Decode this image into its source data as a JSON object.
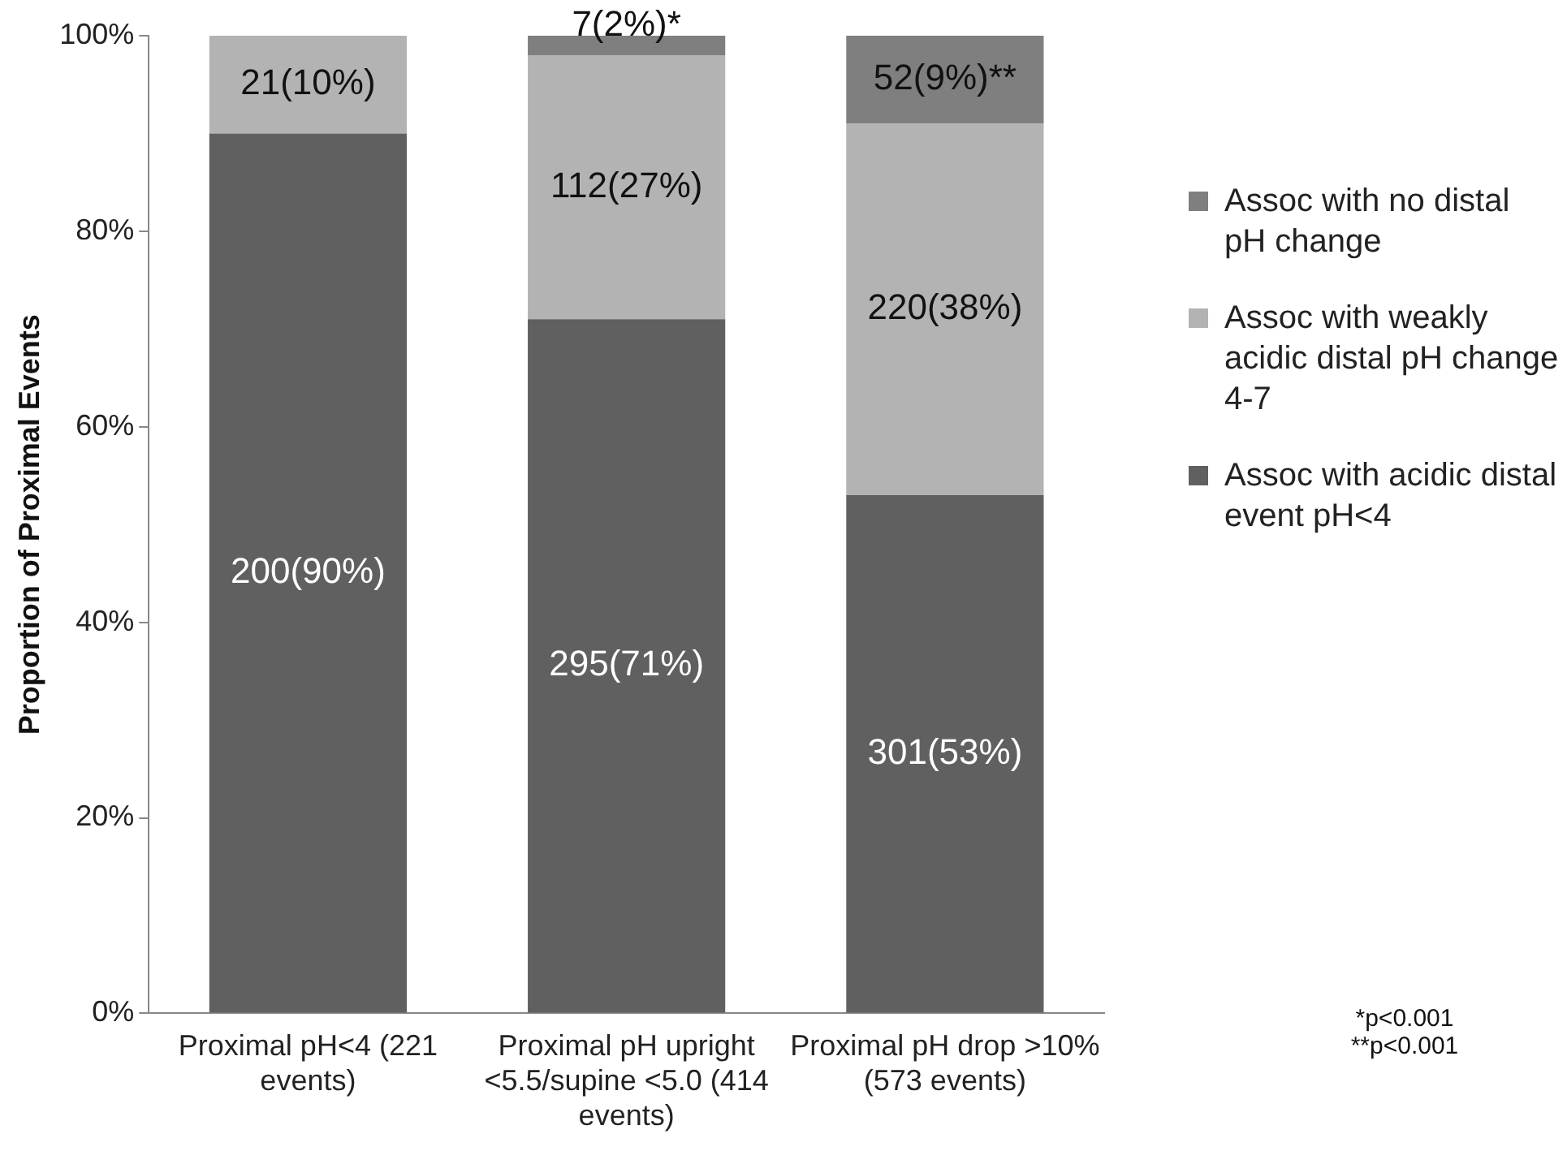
{
  "chart_data": {
    "type": "bar",
    "stacked": true,
    "ylabel": "Proportion of Proximal Events",
    "categories": [
      "Proximal pH<4 (221 events)",
      "Proximal pH upright <5.5/supine <5.0 (414 events)",
      "Proximal pH drop >10% (573 events)"
    ],
    "series": [
      {
        "name": "Assoc with acidic distal event pH<4",
        "color": "#606060",
        "values": [
          90,
          71,
          53
        ],
        "value_labels": [
          "200(90%)",
          "295(71%)",
          "301(53%)"
        ]
      },
      {
        "name": "Assoc with weakly acidic distal pH change 4-7",
        "color": "#b3b3b3",
        "values": [
          10,
          27,
          38
        ],
        "value_labels": [
          "21(10%)",
          "112(27%)",
          "220(38%)"
        ]
      },
      {
        "name": "Assoc with no distal pH change",
        "color": "#7f7f7f",
        "values": [
          0,
          2,
          9
        ],
        "value_labels": [
          null,
          "7(2%)*",
          "52(9%)**"
        ]
      }
    ],
    "ylim": [
      0,
      100
    ],
    "yticks": [
      {
        "value": 0,
        "label": "0%"
      },
      {
        "value": 20,
        "label": "20%"
      },
      {
        "value": 40,
        "label": "40%"
      },
      {
        "value": 60,
        "label": "60%"
      },
      {
        "value": 80,
        "label": "80%"
      },
      {
        "value": 100,
        "label": "100%"
      }
    ],
    "grid": false,
    "legend": "right",
    "annotations": [
      "*p<0.001",
      "**p<0.001"
    ]
  }
}
